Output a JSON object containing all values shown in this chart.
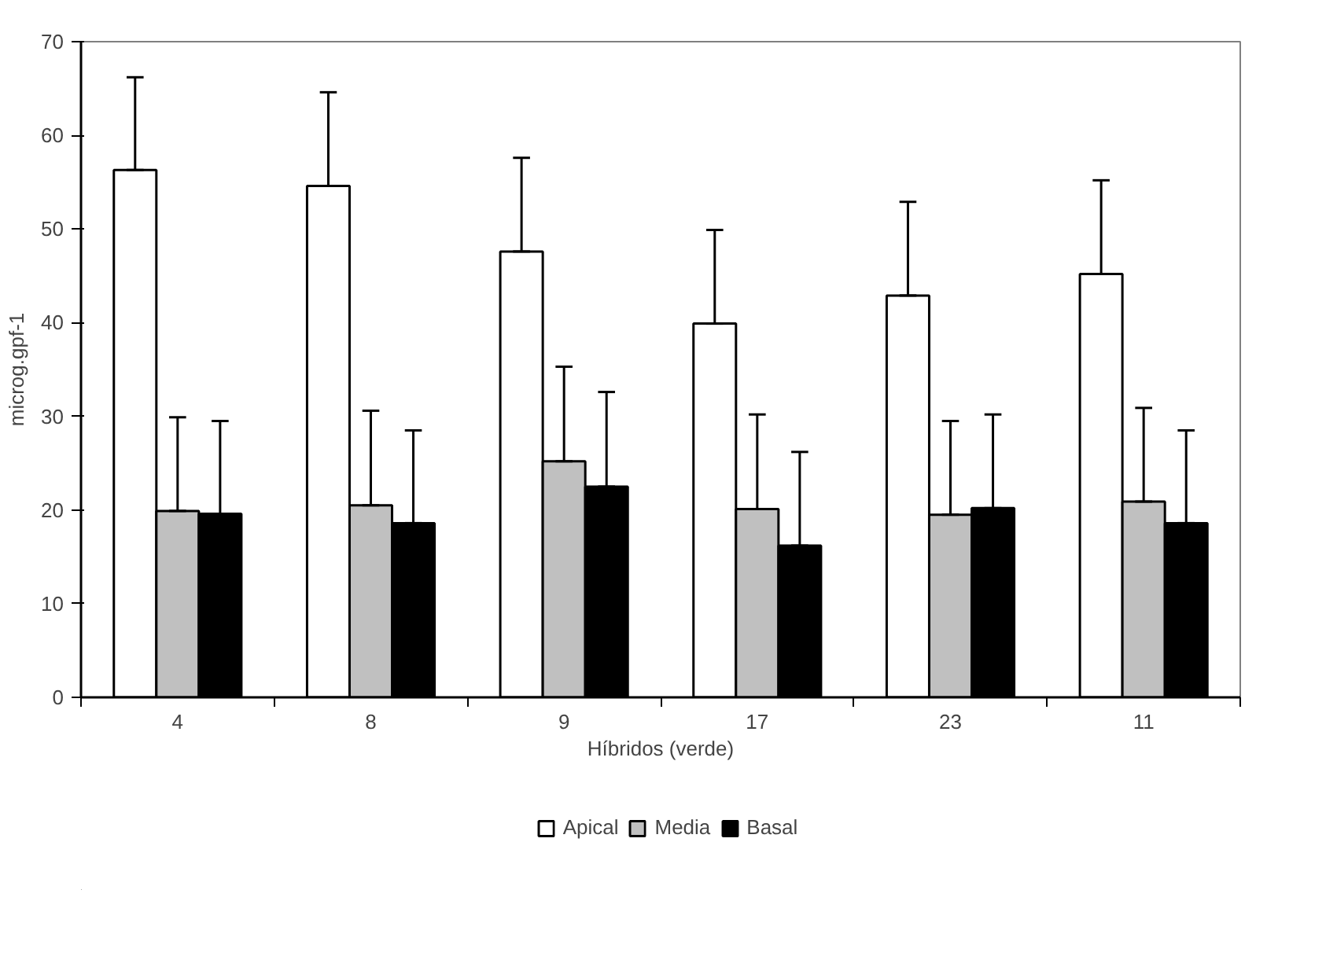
{
  "chart_data": {
    "type": "bar",
    "xlabel": "Híbridos (verde)",
    "ylabel": "microg.gpf-1",
    "categories": [
      "4",
      "8",
      "9",
      "17",
      "23",
      "11"
    ],
    "series": [
      {
        "name": "Apical",
        "color": "#ffffff",
        "values": [
          56.3,
          54.6,
          47.6,
          39.9,
          42.9,
          45.2
        ],
        "errors": [
          [
            56.3,
            66.2
          ],
          [
            54.6,
            64.6
          ],
          [
            47.6,
            57.6
          ],
          [
            39.9,
            49.9
          ],
          [
            42.9,
            52.9
          ],
          [
            45.2,
            55.2
          ]
        ]
      },
      {
        "name": "Media",
        "color": "#c0c0c0",
        "values": [
          19.9,
          20.5,
          25.2,
          20.1,
          19.5,
          20.9
        ],
        "errors": [
          [
            19.9,
            29.9
          ],
          [
            20.5,
            30.6
          ],
          [
            25.2,
            35.3
          ],
          [
            20.1,
            30.2
          ],
          [
            19.5,
            29.5
          ],
          [
            20.9,
            30.9
          ]
        ]
      },
      {
        "name": "Basal",
        "color": "#000000",
        "values": [
          19.6,
          18.6,
          22.5,
          16.2,
          20.2,
          18.6
        ],
        "errors": [
          [
            19.6,
            29.5
          ],
          [
            18.6,
            28.5
          ],
          [
            22.5,
            32.6
          ],
          [
            16.2,
            26.2
          ],
          [
            20.2,
            30.2
          ],
          [
            18.6,
            28.5
          ]
        ]
      }
    ],
    "ylim": [
      0,
      70
    ],
    "yticks": [
      0,
      10,
      20,
      30,
      40,
      50,
      60,
      70
    ],
    "grid": false,
    "legend": "bottom"
  }
}
